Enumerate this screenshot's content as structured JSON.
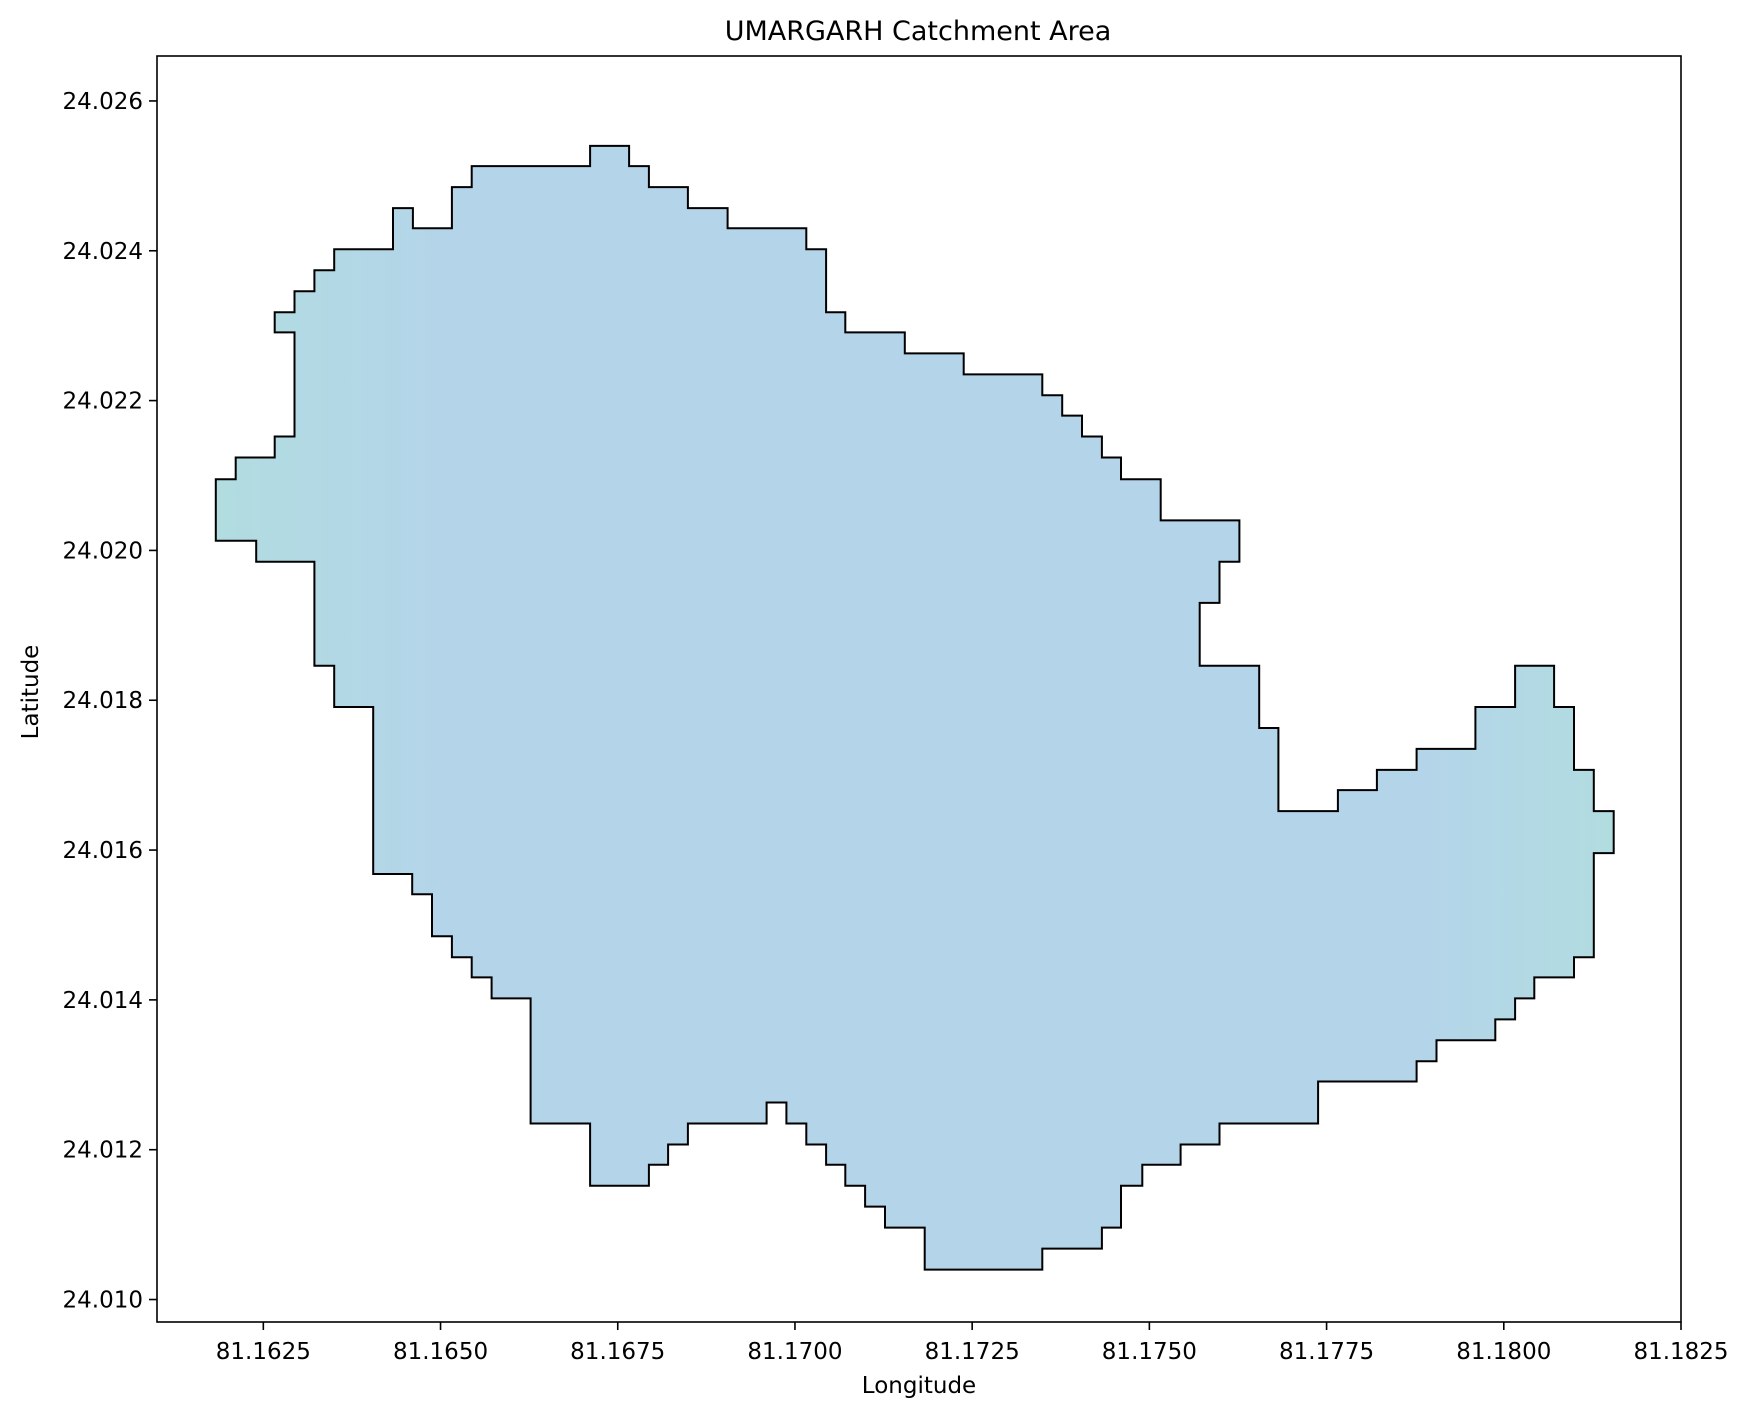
{
  "map": {
    "title": "UMARGARH Catchment Area",
    "xlabel": "Longitude",
    "ylabel": "Latitude",
    "xlim": [
      81.161,
      81.1825
    ],
    "ylim": [
      24.0097,
      24.0266
    ],
    "xticks": [
      81.1625,
      81.165,
      81.1675,
      81.17,
      81.1725,
      81.175,
      81.1775,
      81.18,
      81.1825
    ],
    "xtick_labels": [
      "81.1625",
      "81.1650",
      "81.1675",
      "81.1700",
      "81.1725",
      "81.1750",
      "81.1775",
      "81.1800",
      "81.1825"
    ],
    "yticks": [
      24.01,
      24.012,
      24.014,
      24.016,
      24.018,
      24.02,
      24.022,
      24.024,
      24.026
    ],
    "ytick_labels": [
      "24.010",
      "24.012",
      "24.014",
      "24.016",
      "24.018",
      "24.020",
      "24.022",
      "24.024",
      "24.026"
    ],
    "fill_color": "#b4d4ea",
    "fill_color_edge": "#b1dce0",
    "edge_color": "#000000",
    "boundary": [
      [
        81.16183,
        24.02095
      ],
      [
        81.16211,
        24.02095
      ],
      [
        81.16211,
        24.02124
      ],
      [
        81.16266,
        24.02124
      ],
      [
        81.16266,
        24.02152
      ],
      [
        81.16294,
        24.02152
      ],
      [
        81.16294,
        24.02291
      ],
      [
        81.16266,
        24.02291
      ],
      [
        81.16266,
        24.02318
      ],
      [
        81.16294,
        24.02318
      ],
      [
        81.16294,
        24.02346
      ],
      [
        81.16322,
        24.02346
      ],
      [
        81.16322,
        24.02374
      ],
      [
        81.1635,
        24.02374
      ],
      [
        81.1635,
        24.02402
      ],
      [
        81.16433,
        24.02402
      ],
      [
        81.16433,
        24.02457
      ],
      [
        81.16461,
        24.02457
      ],
      [
        81.16461,
        24.0243
      ],
      [
        81.16516,
        24.0243
      ],
      [
        81.16516,
        24.02485
      ],
      [
        81.16544,
        24.02485
      ],
      [
        81.16544,
        24.02513
      ],
      [
        81.16711,
        24.02513
      ],
      [
        81.16711,
        24.0254
      ],
      [
        81.16766,
        24.0254
      ],
      [
        81.16766,
        24.02513
      ],
      [
        81.16794,
        24.02513
      ],
      [
        81.16794,
        24.02485
      ],
      [
        81.16849,
        24.02485
      ],
      [
        81.16849,
        24.02457
      ],
      [
        81.16905,
        24.02457
      ],
      [
        81.16905,
        24.0243
      ],
      [
        81.17016,
        24.0243
      ],
      [
        81.17016,
        24.02402
      ],
      [
        81.17044,
        24.02402
      ],
      [
        81.17044,
        24.02318
      ],
      [
        81.17071,
        24.02318
      ],
      [
        81.17071,
        24.02291
      ],
      [
        81.17155,
        24.02291
      ],
      [
        81.17155,
        24.02263
      ],
      [
        81.17238,
        24.02263
      ],
      [
        81.17238,
        24.02235
      ],
      [
        81.17349,
        24.02235
      ],
      [
        81.17349,
        24.02207
      ],
      [
        81.17377,
        24.02207
      ],
      [
        81.17377,
        24.0218
      ],
      [
        81.17405,
        24.0218
      ],
      [
        81.17405,
        24.02152
      ],
      [
        81.17433,
        24.02152
      ],
      [
        81.17433,
        24.02124
      ],
      [
        81.1746,
        24.02124
      ],
      [
        81.1746,
        24.02095
      ],
      [
        81.17516,
        24.02095
      ],
      [
        81.17516,
        24.0204
      ],
      [
        81.17627,
        24.0204
      ],
      [
        81.17627,
        24.01985
      ],
      [
        81.17599,
        24.01985
      ],
      [
        81.17599,
        24.0193
      ],
      [
        81.17571,
        24.0193
      ],
      [
        81.17571,
        24.01846
      ],
      [
        81.17655,
        24.01846
      ],
      [
        81.17655,
        24.01763
      ],
      [
        81.17682,
        24.01763
      ],
      [
        81.17682,
        24.01652
      ],
      [
        81.17766,
        24.01652
      ],
      [
        81.17766,
        24.0168
      ],
      [
        81.17821,
        24.0168
      ],
      [
        81.17821,
        24.01707
      ],
      [
        81.17877,
        24.01707
      ],
      [
        81.17877,
        24.01735
      ],
      [
        81.1796,
        24.01735
      ],
      [
        81.1796,
        24.01791
      ],
      [
        81.18016,
        24.01791
      ],
      [
        81.18016,
        24.01846
      ],
      [
        81.18071,
        24.01846
      ],
      [
        81.18071,
        24.01791
      ],
      [
        81.18099,
        24.01791
      ],
      [
        81.18099,
        24.01707
      ],
      [
        81.18127,
        24.01707
      ],
      [
        81.18127,
        24.01652
      ],
      [
        81.18155,
        24.01652
      ],
      [
        81.18155,
        24.01596
      ],
      [
        81.18127,
        24.01596
      ],
      [
        81.18127,
        24.01457
      ],
      [
        81.18099,
        24.01457
      ],
      [
        81.18099,
        24.0143
      ],
      [
        81.18043,
        24.0143
      ],
      [
        81.18043,
        24.01402
      ],
      [
        81.18016,
        24.01402
      ],
      [
        81.18016,
        24.01374
      ],
      [
        81.17988,
        24.01374
      ],
      [
        81.17988,
        24.01346
      ],
      [
        81.17905,
        24.01346
      ],
      [
        81.17905,
        24.01318
      ],
      [
        81.17877,
        24.01318
      ],
      [
        81.17877,
        24.01291
      ],
      [
        81.17738,
        24.01291
      ],
      [
        81.17738,
        24.01235
      ],
      [
        81.17599,
        24.01235
      ],
      [
        81.17599,
        24.01207
      ],
      [
        81.17544,
        24.01207
      ],
      [
        81.17544,
        24.0118
      ],
      [
        81.1749,
        24.0118
      ],
      [
        81.1749,
        24.01152
      ],
      [
        81.1746,
        24.01152
      ],
      [
        81.1746,
        24.01096
      ],
      [
        81.17433,
        24.01096
      ],
      [
        81.17433,
        24.01068
      ],
      [
        81.17349,
        24.01068
      ],
      [
        81.17349,
        24.0104
      ],
      [
        81.17183,
        24.0104
      ],
      [
        81.17183,
        24.01096
      ],
      [
        81.17127,
        24.01096
      ],
      [
        81.17127,
        24.01124
      ],
      [
        81.17099,
        24.01124
      ],
      [
        81.17099,
        24.01152
      ],
      [
        81.17071,
        24.01152
      ],
      [
        81.17071,
        24.0118
      ],
      [
        81.17044,
        24.0118
      ],
      [
        81.17044,
        24.01207
      ],
      [
        81.17016,
        24.01207
      ],
      [
        81.17016,
        24.01235
      ],
      [
        81.16988,
        24.01235
      ],
      [
        81.16988,
        24.01263
      ],
      [
        81.1696,
        24.01263
      ],
      [
        81.1696,
        24.01235
      ],
      [
        81.16849,
        24.01235
      ],
      [
        81.16849,
        24.01207
      ],
      [
        81.16821,
        24.01207
      ],
      [
        81.16821,
        24.0118
      ],
      [
        81.16794,
        24.0118
      ],
      [
        81.16794,
        24.01152
      ],
      [
        81.16711,
        24.01152
      ],
      [
        81.16711,
        24.01235
      ],
      [
        81.16627,
        24.01235
      ],
      [
        81.16627,
        24.01402
      ],
      [
        81.16572,
        24.01402
      ],
      [
        81.16572,
        24.0143
      ],
      [
        81.16544,
        24.0143
      ],
      [
        81.16544,
        24.01457
      ],
      [
        81.16516,
        24.01457
      ],
      [
        81.16516,
        24.01485
      ],
      [
        81.16488,
        24.01485
      ],
      [
        81.16488,
        24.01541
      ],
      [
        81.1646,
        24.01541
      ],
      [
        81.1646,
        24.01568
      ],
      [
        81.16405,
        24.01568
      ],
      [
        81.16405,
        24.01791
      ],
      [
        81.1635,
        24.01791
      ],
      [
        81.1635,
        24.01846
      ],
      [
        81.16322,
        24.01846
      ],
      [
        81.16322,
        24.01985
      ],
      [
        81.1624,
        24.01985
      ],
      [
        81.1624,
        24.02013
      ],
      [
        81.16183,
        24.02013
      ]
    ]
  }
}
